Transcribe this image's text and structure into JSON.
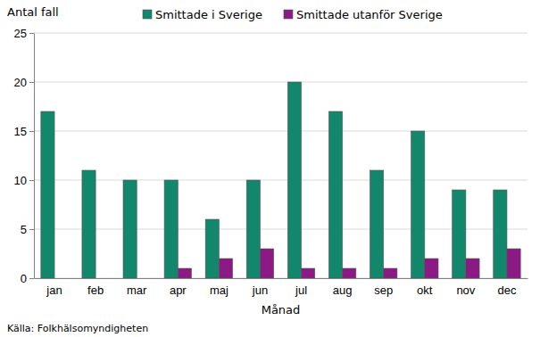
{
  "chart_data": {
    "type": "bar",
    "y_label": "Antal fall",
    "x_label": "Månad",
    "source": "Källa: Folkhälsomyndigheten",
    "categories": [
      "jan",
      "feb",
      "mar",
      "apr",
      "maj",
      "jun",
      "jul",
      "aug",
      "sep",
      "okt",
      "nov",
      "dec"
    ],
    "series": [
      {
        "name": "Smittade i Sverige",
        "color": "#12876b",
        "values": [
          17,
          11,
          10,
          10,
          6,
          10,
          20,
          17,
          11,
          15,
          9,
          9
        ]
      },
      {
        "name": "Smittade utanför Sverige",
        "color": "#8c1a84",
        "values": [
          0,
          0,
          0,
          1,
          2,
          3,
          1,
          1,
          1,
          2,
          2,
          3
        ]
      }
    ],
    "ylim": [
      0,
      25
    ],
    "yticks": [
      0,
      5,
      10,
      15,
      20,
      25
    ],
    "grid": true,
    "legend": "top"
  }
}
